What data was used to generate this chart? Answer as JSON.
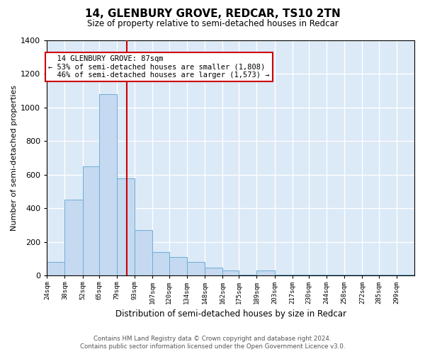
{
  "title": "14, GLENBURY GROVE, REDCAR, TS10 2TN",
  "subtitle": "Size of property relative to semi-detached houses in Redcar",
  "xlabel": "Distribution of semi-detached houses by size in Redcar",
  "ylabel": "Number of semi-detached properties",
  "footer_line1": "Contains HM Land Registry data © Crown copyright and database right 2024.",
  "footer_line2": "Contains public sector information licensed under the Open Government Licence v3.0.",
  "property_size": 87,
  "property_label": "14 GLENBURY GROVE: 87sqm",
  "pct_smaller": 53,
  "count_smaller": 1808,
  "pct_larger": 46,
  "count_larger": 1573,
  "bin_labels": [
    "24sqm",
    "38sqm",
    "52sqm",
    "65sqm",
    "79sqm",
    "93sqm",
    "107sqm",
    "120sqm",
    "134sqm",
    "148sqm",
    "162sqm",
    "175sqm",
    "189sqm",
    "203sqm",
    "217sqm",
    "230sqm",
    "244sqm",
    "258sqm",
    "272sqm",
    "285sqm",
    "299sqm"
  ],
  "bin_left_edges": [
    24,
    38,
    52,
    65,
    79,
    93,
    107,
    120,
    134,
    148,
    162,
    175,
    189,
    203,
    217,
    230,
    244,
    258,
    272,
    285,
    299
  ],
  "counts": [
    80,
    450,
    650,
    1080,
    580,
    270,
    140,
    110,
    80,
    50,
    30,
    5,
    30,
    5,
    5,
    5,
    5,
    5,
    5,
    5,
    5
  ],
  "bar_color": "#c5d9f0",
  "bar_edge_color": "#6baed6",
  "vline_color": "#cc0000",
  "bg_color": "#dce9f7",
  "grid_color": "#ffffff",
  "ylim_max": 1400,
  "yticks": [
    0,
    200,
    400,
    600,
    800,
    1000,
    1200,
    1400
  ],
  "fig_width": 6.0,
  "fig_height": 5.0,
  "dpi": 100
}
